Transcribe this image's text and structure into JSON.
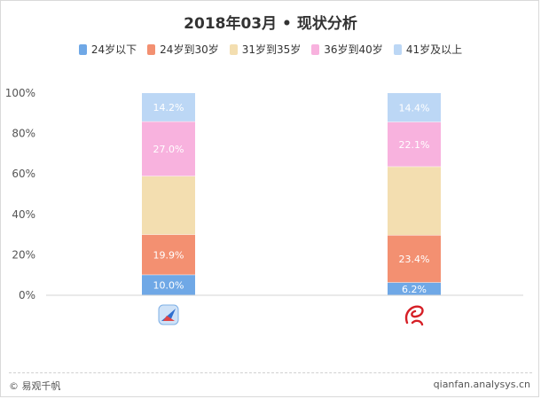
{
  "title": "2018年03月 • 现状分析",
  "footer": {
    "copyright": "© 易观千帆",
    "source": "qianfan.analysys.cn"
  },
  "colors": [
    "#6fa8e6",
    "#f39071",
    "#f3deb0",
    "#f8b2de",
    "#bcd7f5"
  ],
  "chart_data": {
    "type": "bar",
    "stacked": true,
    "categories": [
      "App icon (left)",
      "Air China icon (right)"
    ],
    "series": [
      {
        "name": "24岁以下",
        "values": [
          10.0,
          6.2
        ],
        "labels": [
          "10.0%",
          "6.2%"
        ]
      },
      {
        "name": "24岁到30岁",
        "values": [
          19.9,
          23.4
        ],
        "labels": [
          "19.9%",
          "23.4%"
        ]
      },
      {
        "name": "31岁到35岁",
        "values": [
          28.9,
          33.9
        ],
        "labels": [
          "",
          ""
        ]
      },
      {
        "name": "36岁到40岁",
        "values": [
          27.0,
          22.1
        ],
        "labels": [
          "27.0%",
          "22.1%"
        ]
      },
      {
        "name": "41岁及以上",
        "values": [
          14.2,
          14.4
        ],
        "labels": [
          "14.2%",
          "14.4%"
        ]
      }
    ],
    "yticks": [
      "0%",
      "20%",
      "40%",
      "60%",
      "80%",
      "100%"
    ],
    "ylim": [
      0,
      100
    ],
    "legend_position": "top",
    "grid": false
  }
}
